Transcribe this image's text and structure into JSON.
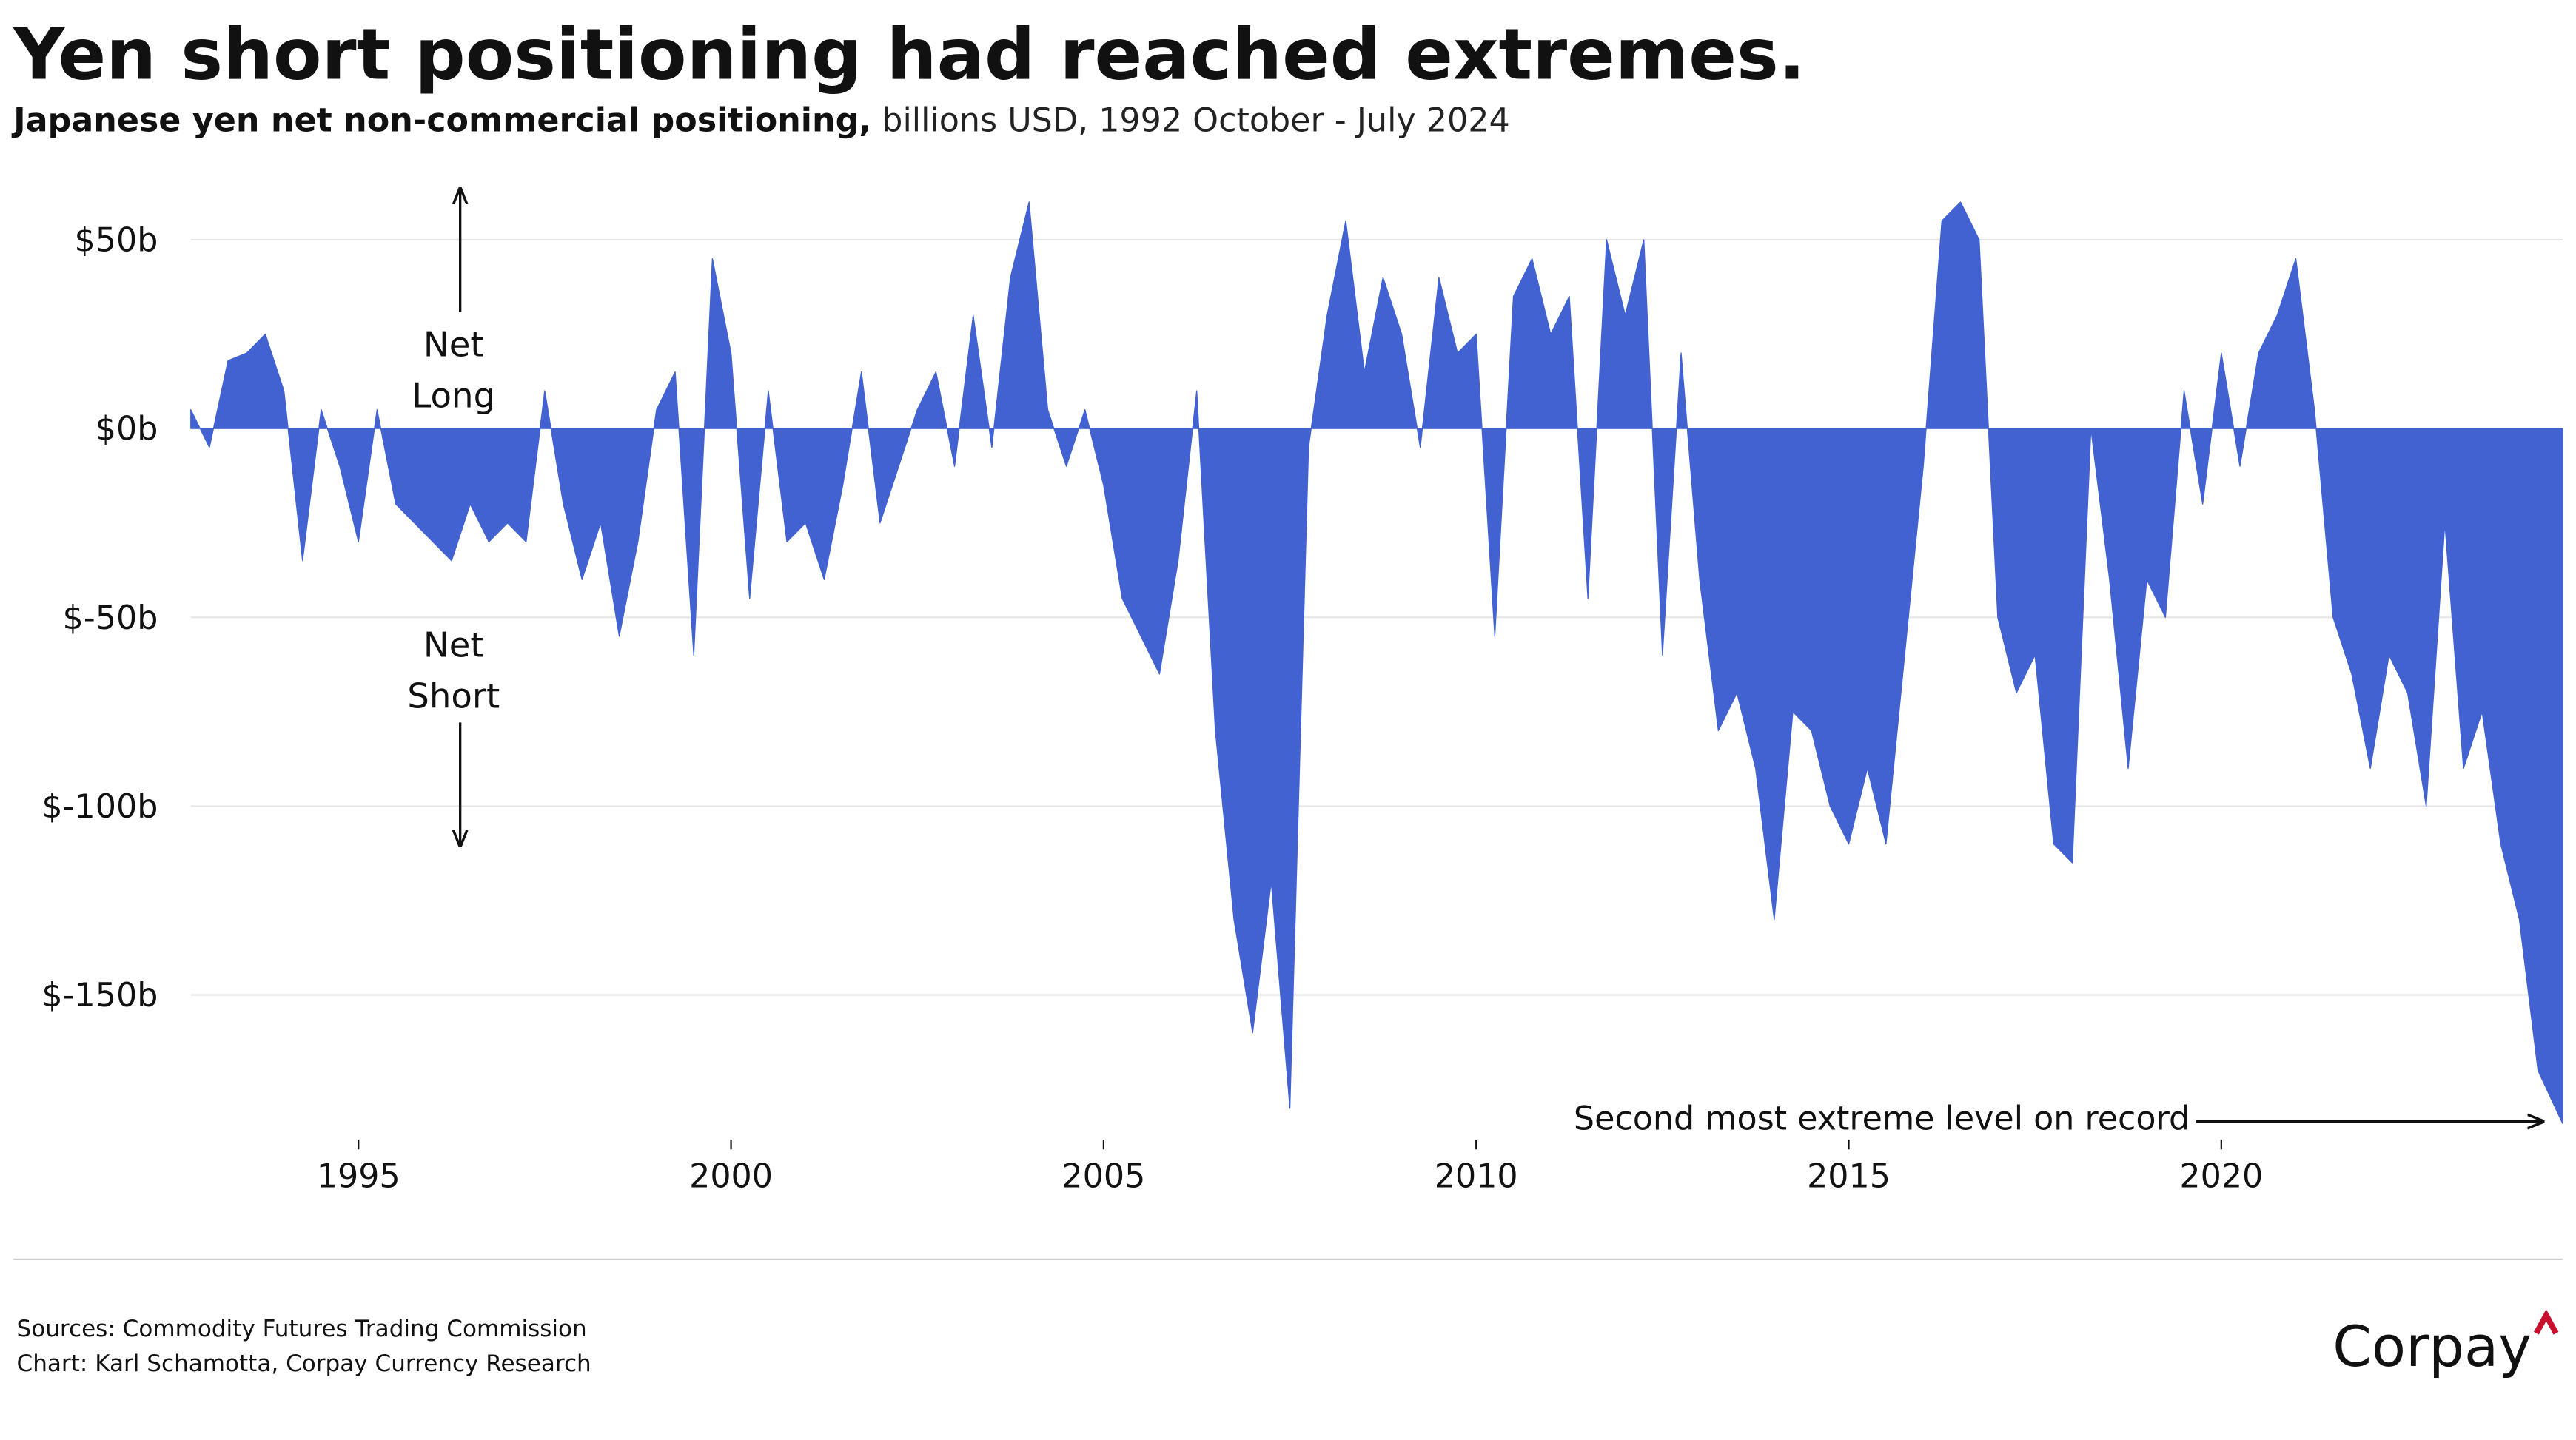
{
  "chart_data": {
    "type": "area",
    "title": "Yen short positioning had reached extremes.",
    "subtitle_bold": "Japanese yen net non-commercial positioning,",
    "subtitle": "billions USD, 1992 October - July 2024",
    "annotation_long": [
      "Net",
      "Long"
    ],
    "annotation_short": [
      "Net",
      "Short"
    ],
    "callout": "Second most extreme level on record",
    "sources": "Sources: Commodity Futures Trading Commission",
    "credit": "Chart: Karl Schamotta, Corpay Currency Research",
    "logo": "Corpay",
    "xlim": [
      1992.75,
      2024.58
    ],
    "xticks": [
      1995,
      2000,
      2005,
      2010,
      2015,
      2020
    ],
    "ylim": [
      -190,
      75
    ],
    "yticks": [
      {
        "value": 50,
        "label": "$50b"
      },
      {
        "value": 0,
        "label": "$0b"
      },
      {
        "value": -50,
        "label": "$-50b"
      },
      {
        "value": -100,
        "label": "$-100b"
      },
      {
        "value": -150,
        "label": "$-150b"
      }
    ],
    "grid": true,
    "x": [
      1992.75,
      1993.0,
      1993.25,
      1993.5,
      1993.75,
      1994.0,
      1994.25,
      1994.5,
      1994.75,
      1995.0,
      1995.25,
      1995.5,
      1995.75,
      1996.0,
      1996.25,
      1996.5,
      1996.75,
      1997.0,
      1997.25,
      1997.5,
      1997.75,
      1998.0,
      1998.25,
      1998.5,
      1998.75,
      1999.0,
      1999.25,
      1999.5,
      1999.75,
      2000.0,
      2000.25,
      2000.5,
      2000.75,
      2001.0,
      2001.25,
      2001.5,
      2001.75,
      2002.0,
      2002.25,
      2002.5,
      2002.75,
      2003.0,
      2003.25,
      2003.5,
      2003.75,
      2004.0,
      2004.25,
      2004.5,
      2004.75,
      2005.0,
      2005.25,
      2005.5,
      2005.75,
      2006.0,
      2006.25,
      2006.5,
      2006.75,
      2007.0,
      2007.25,
      2007.5,
      2007.75,
      2008.0,
      2008.25,
      2008.5,
      2008.75,
      2009.0,
      2009.25,
      2009.5,
      2009.75,
      2010.0,
      2010.25,
      2010.5,
      2010.75,
      2011.0,
      2011.25,
      2011.5,
      2011.75,
      2012.0,
      2012.25,
      2012.5,
      2012.75,
      2013.0,
      2013.25,
      2013.5,
      2013.75,
      2014.0,
      2014.25,
      2014.5,
      2014.75,
      2015.0,
      2015.25,
      2015.5,
      2015.75,
      2016.0,
      2016.25,
      2016.5,
      2016.75,
      2017.0,
      2017.25,
      2017.5,
      2017.75,
      2018.0,
      2018.25,
      2018.5,
      2018.75,
      2019.0,
      2019.25,
      2019.5,
      2019.75,
      2020.0,
      2020.25,
      2020.5,
      2020.75,
      2021.0,
      2021.25,
      2021.5,
      2021.75,
      2022.0,
      2022.25,
      2022.5,
      2022.75,
      2023.0,
      2023.25,
      2023.5,
      2023.75,
      2024.0,
      2024.25,
      2024.58
    ],
    "series": [
      {
        "name": "Japanese yen net non-commercial positioning",
        "color": "#4262d2",
        "values": [
          5,
          -5,
          18,
          20,
          25,
          10,
          -35,
          5,
          -10,
          -30,
          5,
          -20,
          -25,
          -30,
          -35,
          -20,
          -30,
          -25,
          -30,
          10,
          -20,
          -40,
          -25,
          -55,
          -30,
          5,
          15,
          -60,
          45,
          20,
          -45,
          10,
          -30,
          -25,
          -40,
          -15,
          15,
          -25,
          -10,
          5,
          15,
          -10,
          30,
          -5,
          40,
          60,
          5,
          -10,
          5,
          -15,
          -45,
          -55,
          -65,
          -35,
          10,
          -80,
          -130,
          -160,
          -120,
          -180,
          -5,
          30,
          55,
          15,
          40,
          25,
          -5,
          40,
          20,
          25,
          -55,
          35,
          45,
          25,
          35,
          -45,
          50,
          30,
          50,
          -60,
          20,
          -40,
          -80,
          -70,
          -90,
          -130,
          -75,
          -80,
          -100,
          -110,
          -90,
          -110,
          -60,
          -10,
          55,
          60,
          50,
          -50,
          -70,
          -60,
          -110,
          -115,
          0,
          -40,
          -90,
          -40,
          -50,
          10,
          -20,
          20,
          -10,
          20,
          30,
          45,
          5,
          -50,
          -65,
          -90,
          -60,
          -70,
          -100,
          -25,
          -90,
          -75,
          -110,
          -130,
          -170,
          -184
        ]
      }
    ]
  }
}
